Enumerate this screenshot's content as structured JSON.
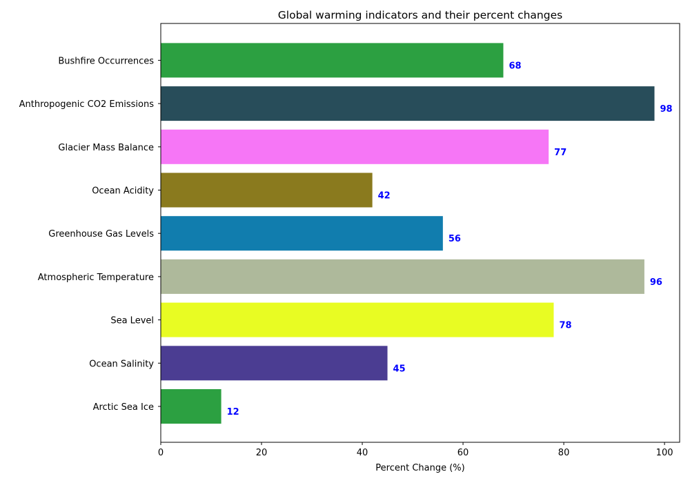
{
  "chart_data": {
    "type": "bar",
    "orientation": "horizontal",
    "title": "Global warming indicators and their percent changes",
    "xlabel": "Percent Change (%)",
    "ylabel": "",
    "xlim": [
      0,
      103
    ],
    "xticks": [
      0,
      20,
      40,
      60,
      80,
      100
    ],
    "grid": false,
    "label_color": "#0000ff",
    "categories": [
      "Arctic Sea Ice",
      "Ocean Salinity",
      "Sea Level",
      "Atmospheric Temperature",
      "Greenhouse Gas Levels",
      "Ocean Acidity",
      "Glacier Mass Balance",
      "Anthropogenic CO2 Emissions",
      "Bushfire Occurrences"
    ],
    "values": [
      12,
      45,
      78,
      96,
      56,
      42,
      77,
      98,
      68
    ],
    "colors": [
      "#2ca041",
      "#4b3d92",
      "#e8fc23",
      "#aeb99b",
      "#117dae",
      "#8a7a1e",
      "#f676f6",
      "#284d5a",
      "#2ca041"
    ]
  }
}
